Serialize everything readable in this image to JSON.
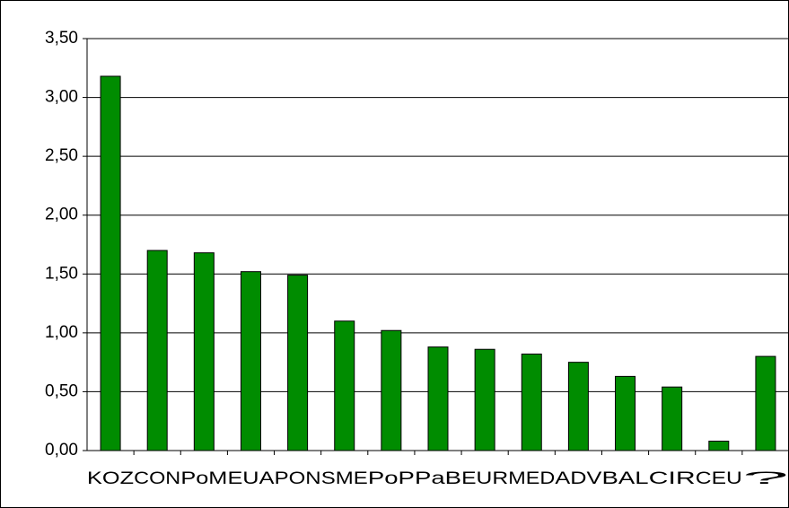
{
  "chart_data": {
    "type": "bar",
    "categories": [
      "KOZ",
      "CON",
      "PoM",
      "EUA",
      "PON",
      "SME",
      "PoP",
      "PaB",
      "EUR",
      "MED",
      "ADV",
      "BAL",
      "CIR",
      "CEU",
      "?"
    ],
    "values": [
      3.18,
      1.7,
      1.68,
      1.52,
      1.49,
      1.1,
      1.02,
      0.88,
      0.86,
      0.82,
      0.75,
      0.63,
      0.54,
      0.08,
      0.8
    ],
    "color": "#008c00",
    "ylim": [
      0,
      3.5
    ],
    "yticks": [
      {
        "value": 0,
        "label": "0,00"
      },
      {
        "value": 0.5,
        "label": "0,50"
      },
      {
        "value": 1,
        "label": "1,00"
      },
      {
        "value": 1.5,
        "label": "1,50"
      },
      {
        "value": 2,
        "label": "2,00"
      },
      {
        "value": 2.5,
        "label": "2,50"
      },
      {
        "value": 3,
        "label": "3,00"
      },
      {
        "value": 3.5,
        "label": "3,50"
      }
    ],
    "grid": true
  }
}
